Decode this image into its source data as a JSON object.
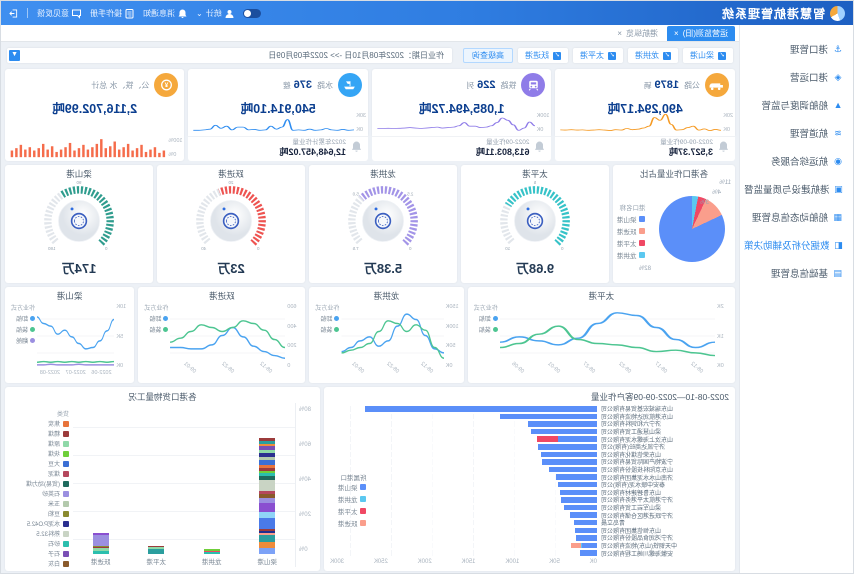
{
  "header": {
    "title": "智慧港航管理系统",
    "items": [
      {
        "icon": "user-icon",
        "label": "统计"
      },
      {
        "icon": "bell-icon",
        "label": "消息通知"
      },
      {
        "icon": "doc-icon",
        "label": "操作手册"
      },
      {
        "icon": "chat-icon",
        "label": "意见反馈"
      }
    ],
    "exit_label": "退出"
  },
  "tabs": [
    {
      "label": "运营监测(旧)",
      "active": true
    },
    {
      "label": "港航纵览",
      "active": false
    }
  ],
  "sidebar": {
    "items": [
      {
        "icon": "anchor-icon",
        "label": "港口管理",
        "active": false
      },
      {
        "icon": "ship-icon",
        "label": "港口运营",
        "active": false
      },
      {
        "icon": "dispatch-icon",
        "label": "船舶调度与监管",
        "active": false
      },
      {
        "icon": "channel-icon",
        "label": "航道管理",
        "active": false
      },
      {
        "icon": "service-icon",
        "label": "航运综合服务",
        "active": false
      },
      {
        "icon": "build-icon",
        "label": "港航建设与质量监督",
        "active": false
      },
      {
        "icon": "dynamic-icon",
        "label": "船舶动态信息管理",
        "active": false
      },
      {
        "icon": "analysis-icon",
        "label": "数据分析及辅助决策",
        "active": true
      },
      {
        "icon": "base-icon",
        "label": "基础信息管理",
        "active": false
      }
    ]
  },
  "filter": {
    "ports": [
      "梁山港",
      "龙拱港",
      "太平港",
      "跃进港"
    ],
    "advanced_label": "高级查询",
    "date_label": "作业日期：2022年08月10日 ->> 2022年09月09日"
  },
  "kpis": [
    {
      "icon": "truck-icon",
      "icon_color": "#f5a83c",
      "label": "公路",
      "count": "1879",
      "unit": "辆",
      "value": "490,294.17吨",
      "axis": [
        "20K",
        "0K"
      ],
      "spark_color": "#f59a23",
      "spark": [
        8,
        12,
        7,
        14,
        9,
        26,
        20,
        11,
        9,
        34,
        78,
        52,
        64,
        26,
        18,
        13,
        11,
        16,
        9,
        11,
        7,
        9,
        11,
        9,
        8,
        10,
        9,
        11,
        9,
        10
      ],
      "alert": {
        "label": "2022-09-09作业量",
        "value": "3,527.37吨"
      }
    },
    {
      "icon": "train-icon",
      "icon_color": "#8f7ce8",
      "label": "铁路",
      "count": "226",
      "unit": "列",
      "value": "1,085,494.72吨",
      "axis": [
        "100K",
        "0K"
      ],
      "spark_color": "#8f7ce8",
      "spark": [
        28,
        44,
        18,
        8,
        32,
        52,
        62,
        42,
        28,
        22,
        20,
        26,
        26,
        42,
        28,
        22,
        20,
        18,
        22,
        20,
        18,
        16,
        18,
        20,
        18,
        17,
        16,
        17,
        16,
        16
      ],
      "alert": {
        "label": "2022-09作业量",
        "value": "613,803.11吨"
      }
    },
    {
      "icon": "boat-icon",
      "icon_color": "#35a5f5",
      "label": "水路",
      "count": "376",
      "unit": "艘",
      "value": "540,914.10吨",
      "axis": [
        "30K",
        "0K"
      ],
      "spark_color": "#2d8cf0",
      "spark": [
        10,
        8,
        12,
        8,
        10,
        16,
        10,
        8,
        13,
        8,
        10,
        8,
        55,
        22,
        13,
        26,
        10,
        8,
        12,
        10,
        22,
        22,
        10,
        26,
        17,
        30,
        13,
        10,
        8,
        8
      ],
      "alert": {
        "label": "2022年累计作业量",
        "value": "12,648,457.02吨"
      }
    },
    {
      "icon": "total-icon",
      "icon_color": "#f5a83c",
      "label": "公、铁、水 总计",
      "count": "",
      "unit": "",
      "value": "2,116,702.99吨",
      "axis": [
        "100%",
        "0%"
      ],
      "spark_color": "#f56c4b",
      "bars": [
        28,
        18,
        42,
        32,
        22,
        52,
        38,
        28,
        56,
        42,
        32,
        66,
        46,
        38,
        76,
        56,
        42,
        32,
        52,
        38,
        28,
        60,
        42,
        32,
        22,
        46,
        32,
        56,
        38,
        28,
        42,
        32,
        52,
        38,
        28
      ]
    }
  ],
  "pie": {
    "title": "各港口作业量占比",
    "legend_title": "港口名称",
    "slices": [
      {
        "name": "梁山港",
        "value": 82,
        "color": "#5b8ff9"
      },
      {
        "name": "跃进港",
        "value": 11,
        "color": "#fa9e8c"
      },
      {
        "name": "太平港",
        "value": 4,
        "color": "#f04864"
      },
      {
        "name": "龙拱港",
        "value": 3,
        "color": "#5bc8f0"
      }
    ],
    "callouts": [
      "11%",
      "4%",
      "3%"
    ],
    "big_label": "82%"
  },
  "gauges": [
    {
      "title": "太平港",
      "value": "9.68万",
      "pct": 0.72,
      "color": "#35c3c8",
      "ticks": [
        {
          "t": "0",
          "a": 135
        },
        {
          "t": "5",
          "a": 270
        },
        {
          "t": "10",
          "a": 45
        }
      ]
    },
    {
      "title": "龙拱港",
      "value": "5.38万",
      "pct": 0.66,
      "color": "#a394e8",
      "ticks": [
        {
          "t": "0",
          "a": 135
        },
        {
          "t": "2.5",
          "a": 225
        },
        {
          "t": "5.0",
          "a": 315
        },
        {
          "t": "7.5",
          "a": 45
        }
      ]
    },
    {
      "title": "跃进港",
      "value": "23万",
      "pct": 0.58,
      "color": "#ef5350",
      "ticks": [
        {
          "t": "0",
          "a": 135
        },
        {
          "t": "20",
          "a": 270
        },
        {
          "t": "40",
          "a": 45
        }
      ]
    },
    {
      "title": "梁山港",
      "value": "174万",
      "pct": 0.62,
      "color": "#2f9d8e",
      "ticks": [
        {
          "t": "0",
          "a": 135
        },
        {
          "t": "90",
          "a": 270
        },
        {
          "t": "180",
          "a": 45
        }
      ]
    }
  ],
  "line_charts": [
    {
      "title": "太平港",
      "flex": 2.1,
      "y": [
        "2K",
        "1K",
        "0K"
      ],
      "x": [
        "08-12",
        "08-17",
        "08-22",
        "08-27",
        "09-01",
        "09-06"
      ],
      "rotate": true,
      "legend_title": "作业方式",
      "series": [
        {
          "name": "卸船",
          "color": "#4aa3f0",
          "points": [
            38,
            30,
            42,
            60,
            78,
            82,
            66,
            44,
            34,
            40,
            46,
            38
          ]
        },
        {
          "name": "装船",
          "color": "#4dc591",
          "points": [
            18,
            22,
            26,
            24,
            30,
            34,
            36,
            42,
            62,
            50,
            36,
            30
          ]
        }
      ]
    },
    {
      "title": "龙拱港",
      "flex": 1.2,
      "y": [
        "150K",
        "100K",
        "50K",
        "0K"
      ],
      "x": [
        "08-12",
        "08-22",
        "09-01"
      ],
      "rotate": true,
      "legend_title": "作业方式",
      "series": [
        {
          "name": "卸船",
          "color": "#4aa3f0",
          "points": [
            22,
            28,
            48,
            72,
            80,
            62,
            40,
            32,
            46,
            40,
            30,
            24
          ]
        },
        {
          "name": "装船",
          "color": "#4dc591",
          "points": [
            14,
            30,
            56,
            64,
            54,
            66,
            70,
            54,
            36,
            30,
            26,
            22
          ]
        }
      ]
    },
    {
      "title": "跃进港",
      "flex": 1.3,
      "y": [
        "600",
        "400",
        "200",
        "0"
      ],
      "x": [
        "08-12",
        "08-22",
        "09-01"
      ],
      "rotate": true,
      "legend_title": "作业方式",
      "series": [
        {
          "name": "卸船",
          "color": "#4aa3f0",
          "points": [
            14,
            18,
            24,
            32,
            46,
            60,
            48,
            34,
            28,
            28,
            30,
            30
          ]
        },
        {
          "name": "装船",
          "color": "#4dc591",
          "points": [
            30,
            42,
            56,
            66,
            70,
            60,
            54,
            60,
            64,
            54,
            44,
            38
          ]
        }
      ]
    },
    {
      "title": "梁山港",
      "flex": 1.0,
      "y": [
        "10K",
        "5K",
        "0K"
      ],
      "x": [
        "2022-06",
        "2022-07",
        "2022-08"
      ],
      "rotate": false,
      "legend_title": "作业方式",
      "series": [
        {
          "name": "卸船",
          "color": "#4aa3f0",
          "points": [
            72,
            55,
            40,
            30,
            28,
            36,
            46,
            56,
            50,
            62,
            66,
            76
          ]
        },
        {
          "name": "装船",
          "color": "#4dc591",
          "points": [
            9,
            8,
            9,
            8,
            9,
            8,
            9,
            8,
            9,
            8,
            9,
            8
          ]
        },
        {
          "name": "翻舱",
          "color": "#9b8fe0",
          "points": [
            4,
            4,
            4,
            4,
            4,
            5,
            4,
            4,
            4,
            5,
            4,
            4
          ]
        }
      ]
    }
  ],
  "customer": {
    "title": "2022-08-10—2022-09-09客户作业量",
    "x_ticks": [
      "0K",
      "50K",
      "100K",
      "150K",
      "200K",
      "250K",
      "300K"
    ],
    "legend_title": "所属港口",
    "legend": [
      {
        "name": "梁山港",
        "color": "#5b8ff9"
      },
      {
        "name": "龙拱港",
        "color": "#5bc8f0"
      },
      {
        "name": "太平港",
        "color": "#f04864"
      },
      {
        "name": "跃进港",
        "color": "#fa9e8c"
      }
    ],
    "rows": [
      {
        "name": "山东瑞城宏基贸易有限公司",
        "segments": [
          [
            "b",
            298
          ]
        ]
      },
      {
        "name": "山东港航润达物流有限公司",
        "segments": [
          [
            "b",
            124
          ]
        ]
      },
      {
        "name": "济宁六和饲料有限公司",
        "segments": [
          [
            "b",
            88
          ]
        ]
      },
      {
        "name": "梁山慧通工贸有限公司",
        "segments": [
          [
            "b",
            84
          ]
        ]
      },
      {
        "name": "山东汶上海螺水泥有限公司",
        "segments": [
          [
            "b",
            50
          ],
          [
            "r",
            27
          ]
        ]
      },
      {
        "name": "济宁凯达商砼(有限)公司",
        "segments": [
          [
            "b",
            75
          ]
        ]
      },
      {
        "name": "山东荣信煤化有限公司",
        "segments": [
          [
            "b",
            72
          ]
        ]
      },
      {
        "name": "宁波物产国际贸易有限公司",
        "segments": [
          [
            "b",
            70
          ]
        ]
      },
      {
        "name": "山东京阳科技股份有限公司",
        "segments": [
          [
            "b",
            62
          ]
        ]
      },
      {
        "name": "济南山水水泥集团有限公司",
        "segments": [
          [
            "b",
            52
          ]
        ]
      },
      {
        "name": "泰安中联水泥(有限)公司",
        "segments": [
          [
            "b",
            50
          ]
        ]
      },
      {
        "name": "山东鲁碧建材有限公司",
        "segments": [
          [
            "b",
            48
          ]
        ]
      },
      {
        "name": "济宁港航太平港务有限公司",
        "segments": [
          [
            "b",
            46
          ]
        ]
      },
      {
        "name": "梁山军岩工贸有限公司",
        "segments": [
          [
            "b",
            42
          ]
        ]
      },
      {
        "name": "济宁跃进港区仓储有限公司",
        "segments": [
          [
            "b",
            34
          ]
        ]
      },
      {
        "name": "青岛立晨",
        "segments": [
          [
            "b",
            30
          ]
        ]
      },
      {
        "name": "山东恒信集团有限公司",
        "segments": [
          [
            "b",
            28
          ]
        ]
      },
      {
        "name": "济宁鸿润食品股份有限公司",
        "segments": [
          [
            "b",
            27
          ]
        ]
      },
      {
        "name": "中天钢铁(山东)物流有限公司",
        "segments": [
          [
            "b",
            19
          ],
          [
            "c",
            2
          ],
          [
            "s",
            12
          ]
        ]
      },
      {
        "name": "安徽海螺川崎工程有限公司",
        "segments": [
          [
            "b",
            22
          ]
        ]
      }
    ],
    "seg_colors": {
      "b": "#5b8ff9",
      "c": "#5bc8f0",
      "r": "#f04864",
      "s": "#fa9e8c"
    }
  },
  "stacked": {
    "title": "各港口货物量工况",
    "y_ticks": [
      "80%",
      "60%",
      "40%",
      "20%",
      "0%"
    ],
    "legend_title": "货类",
    "legend": [
      {
        "name": "焦炭",
        "color": "#e8743b"
      },
      {
        "name": "精煤",
        "color": "#9c3b3b"
      },
      {
        "name": "原煤",
        "color": "#8fd9a8"
      },
      {
        "name": "块煤",
        "color": "#6fcf3a"
      },
      {
        "name": "大豆",
        "color": "#3b6fd4"
      },
      {
        "name": "煤泥",
        "color": "#b5485d"
      },
      {
        "name": "(贸易)动力煤",
        "color": "#1e6b5e"
      },
      {
        "name": "石英砂",
        "color": "#9b8fe0"
      },
      {
        "name": "玉米",
        "color": "#b3c9ac"
      },
      {
        "name": "豆粕",
        "color": "#8a8a2e"
      },
      {
        "name": "水泥P.O42.5",
        "color": "#2a2f8f"
      },
      {
        "name": "熟料32.5",
        "color": "#c9d4c4"
      },
      {
        "name": "砂石",
        "color": "#2bbfae"
      },
      {
        "name": "石子",
        "color": "#7a4fb5"
      },
      {
        "name": "白灰",
        "color": "#8a5a2b"
      },
      {
        "name": "原木",
        "color": "#1f7a6e"
      }
    ],
    "categories": [
      {
        "name": "梁山港",
        "segments": [
          [
            "#7da2f7",
            5
          ],
          [
            "#f08c3b",
            5
          ],
          [
            "#2b9e9e",
            6
          ],
          [
            "#fa9e8c",
            2
          ],
          [
            "#1f2f8f",
            2
          ],
          [
            "#9c3b3b",
            2
          ],
          [
            "#4a7ae8",
            9
          ],
          [
            "#8fd4f7",
            5
          ],
          [
            "#8a4fd0",
            8
          ],
          [
            "#9b8fe0",
            4
          ],
          [
            "#8a5a2b",
            4
          ],
          [
            "#b5485d",
            2
          ],
          [
            "#c9d4c4",
            10
          ],
          [
            "#1e6b5e",
            3
          ],
          [
            "#2bbfae",
            3
          ],
          [
            "#6fcf3a",
            2
          ],
          [
            "#9c3b3b",
            2
          ],
          [
            "#e8743b",
            3
          ],
          [
            "#3b6fd4",
            4
          ],
          [
            "#b3c9ac",
            3
          ],
          [
            "#2a2f8f",
            3
          ],
          [
            "#8fd9a8",
            3
          ],
          [
            "#7a4fb5",
            3
          ],
          [
            "#f08c3b",
            2
          ],
          [
            "#2b9e9e",
            3
          ],
          [
            "#9c3b3b",
            2
          ]
        ]
      },
      {
        "name": "龙拱港",
        "segments": [
          [
            "#2bbfae",
            2
          ],
          [
            "#f04864",
            1
          ],
          [
            "#6fcf3a",
            1
          ]
        ]
      },
      {
        "name": "太平港",
        "segments": [
          [
            "#2b9e9e",
            4
          ],
          [
            "#8fd9a8",
            2
          ],
          [
            "#9c3b3b",
            1
          ]
        ]
      },
      {
        "name": "跃进港",
        "segments": [
          [
            "#2bbfae",
            3
          ],
          [
            "#8fd9a8",
            2
          ],
          [
            "#9c3b3b",
            1
          ],
          [
            "#8a8a2e",
            1
          ],
          [
            "#9b8fe0",
            9
          ],
          [
            "#8a4fd0",
            2
          ]
        ]
      }
    ]
  },
  "colors": {
    "accent": "#2d8cf0",
    "header_blue": "#2f7de1",
    "value_blue": "#0b3e8f",
    "bg": "#edf1f6"
  }
}
